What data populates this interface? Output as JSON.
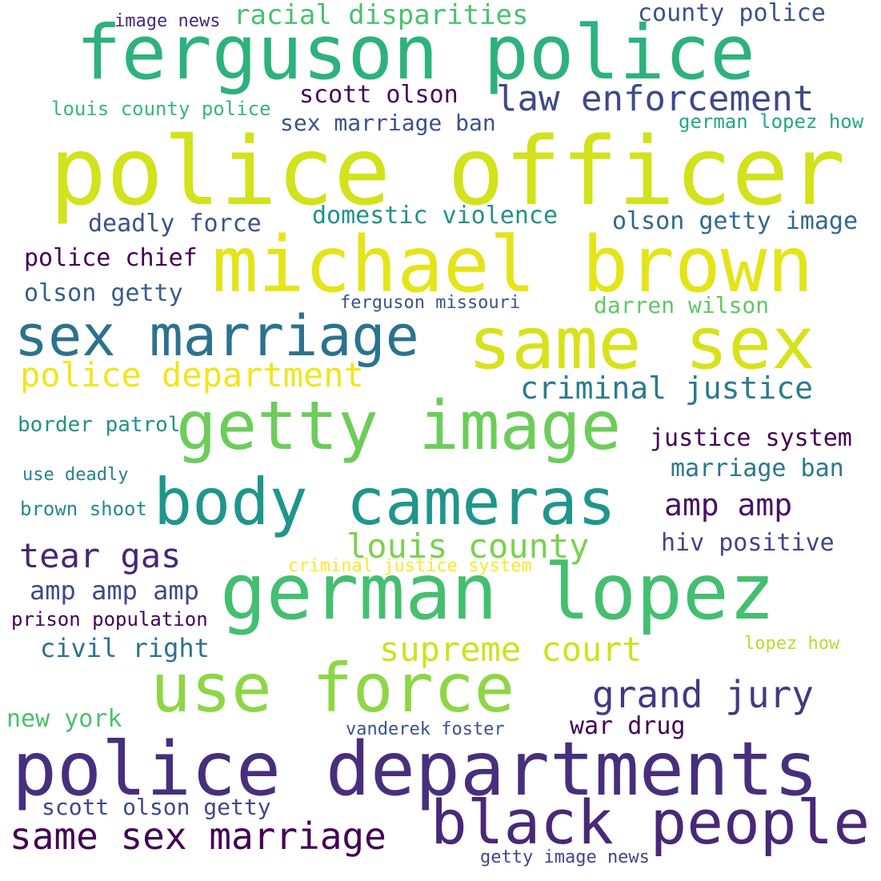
{
  "words": {
    "police_officer": {
      "text": "police officer",
      "color": "#d2e21b"
    },
    "michael_brown": {
      "text": "michael brown",
      "color": "#e5e419"
    },
    "german_lopez": {
      "text": "german lopez",
      "color": "#44bf70"
    },
    "ferguson_police": {
      "text": "ferguson police",
      "color": "#2db27d"
    },
    "same_sex": {
      "text": "same sex",
      "color": "#d8e219"
    },
    "police_departments": {
      "text": "police departments",
      "color": "#472f7d"
    },
    "getty_image": {
      "text": "getty image",
      "color": "#6ccd5a"
    },
    "body_cameras": {
      "text": "body cameras",
      "color": "#1f968b"
    },
    "use_force": {
      "text": "use force",
      "color": "#8ed645"
    },
    "black_people": {
      "text": "black people",
      "color": "#482878"
    },
    "sex_marriage": {
      "text": "sex marriage",
      "color": "#2c728e"
    },
    "same_sex_marriage": {
      "text": "same sex marriage",
      "color": "#440154"
    },
    "law_enforcement": {
      "text": "law enforcement",
      "color": "#3e4989"
    },
    "police_department": {
      "text": "police department",
      "color": "#f1e51d"
    },
    "criminal_justice": {
      "text": "criminal justice",
      "color": "#297b8e"
    },
    "grand_jury": {
      "text": "grand jury",
      "color": "#453882"
    },
    "louis_county": {
      "text": "louis county",
      "color": "#7ad151"
    },
    "supreme_court": {
      "text": "supreme court",
      "color": "#d0e11c"
    },
    "racial_disparities": {
      "text": "racial disparities",
      "color": "#4ac16d"
    },
    "tear_gas": {
      "text": "tear gas",
      "color": "#482576"
    },
    "amp_amp": {
      "text": "amp amp",
      "color": "#471365"
    },
    "county_police": {
      "text": "county police",
      "color": "#3b528b"
    },
    "scott_olson": {
      "text": "scott olson",
      "color": "#46085c"
    },
    "sex_marriage_ban": {
      "text": "sex marriage ban",
      "color": "#3b528b"
    },
    "deadly_force": {
      "text": "deadly force",
      "color": "#3b528b"
    },
    "domestic_violence": {
      "text": "domestic violence",
      "color": "#21918c"
    },
    "olson_getty_image": {
      "text": "olson getty image",
      "color": "#31688e"
    },
    "police_chief": {
      "text": "police chief",
      "color": "#440154"
    },
    "olson_getty": {
      "text": "olson getty",
      "color": "#355f8d"
    },
    "darren_wilson": {
      "text": "darren wilson",
      "color": "#5ec962"
    },
    "justice_system": {
      "text": "justice system",
      "color": "#440154"
    },
    "marriage_ban": {
      "text": "marriage ban",
      "color": "#2a788e"
    },
    "amp_amp_amp": {
      "text": "amp amp amp",
      "color": "#3e4989"
    },
    "hiv_positive": {
      "text": "hiv positive",
      "color": "#414487"
    },
    "civil_right": {
      "text": "civil right",
      "color": "#2c728e"
    },
    "war_drug": {
      "text": "war drug",
      "color": "#440154"
    },
    "scott_olson_getty": {
      "text": "scott olson getty",
      "color": "#3e4989"
    },
    "new_york": {
      "text": "new york",
      "color": "#4ac16d"
    },
    "image_news": {
      "text": "image news",
      "color": "#482878"
    },
    "louis_county_police": {
      "text": "louis county police",
      "color": "#35b779"
    },
    "german_lopez_how": {
      "text": "german lopez how",
      "color": "#22a884"
    },
    "ferguson_missouri": {
      "text": "ferguson missouri",
      "color": "#3b528b"
    },
    "border_patrol": {
      "text": "border patrol",
      "color": "#20928c"
    },
    "use_deadly": {
      "text": "use deadly",
      "color": "#26828e"
    },
    "brown_shoot": {
      "text": "brown shoot",
      "color": "#23898e"
    },
    "criminal_justice_system": {
      "text": "criminal justice system",
      "color": "#fde725"
    },
    "prison_population": {
      "text": "prison population",
      "color": "#440154"
    },
    "lopez_how": {
      "text": "lopez how",
      "color": "#b5de2b"
    },
    "vanderek_foster": {
      "text": "vanderek foster",
      "color": "#3b528b"
    },
    "getty_image_news": {
      "text": "getty image news",
      "color": "#414487"
    }
  }
}
